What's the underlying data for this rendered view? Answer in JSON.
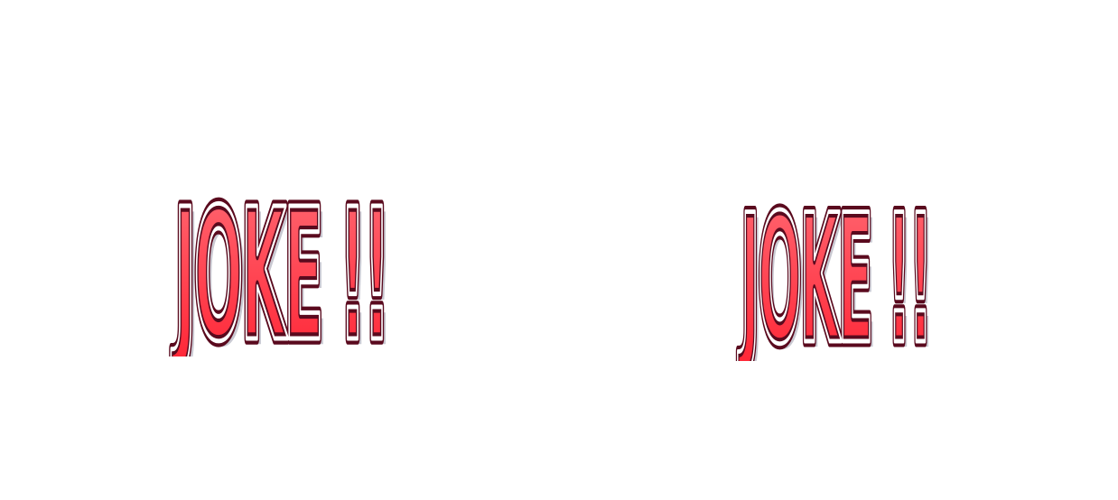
{
  "graphics": [
    {
      "text": "JOKE !!!",
      "colors": {
        "fill": "#ff2a3a",
        "outline": "#5a0a1e",
        "highlight": "#ffffff",
        "shadow": "#9a9aa6"
      }
    },
    {
      "text": "JOKE !!!",
      "colors": {
        "fill": "#ff2a3a",
        "outline": "#5a0a1e",
        "highlight": "#ffffff",
        "shadow": "#9a9aa6"
      }
    }
  ]
}
